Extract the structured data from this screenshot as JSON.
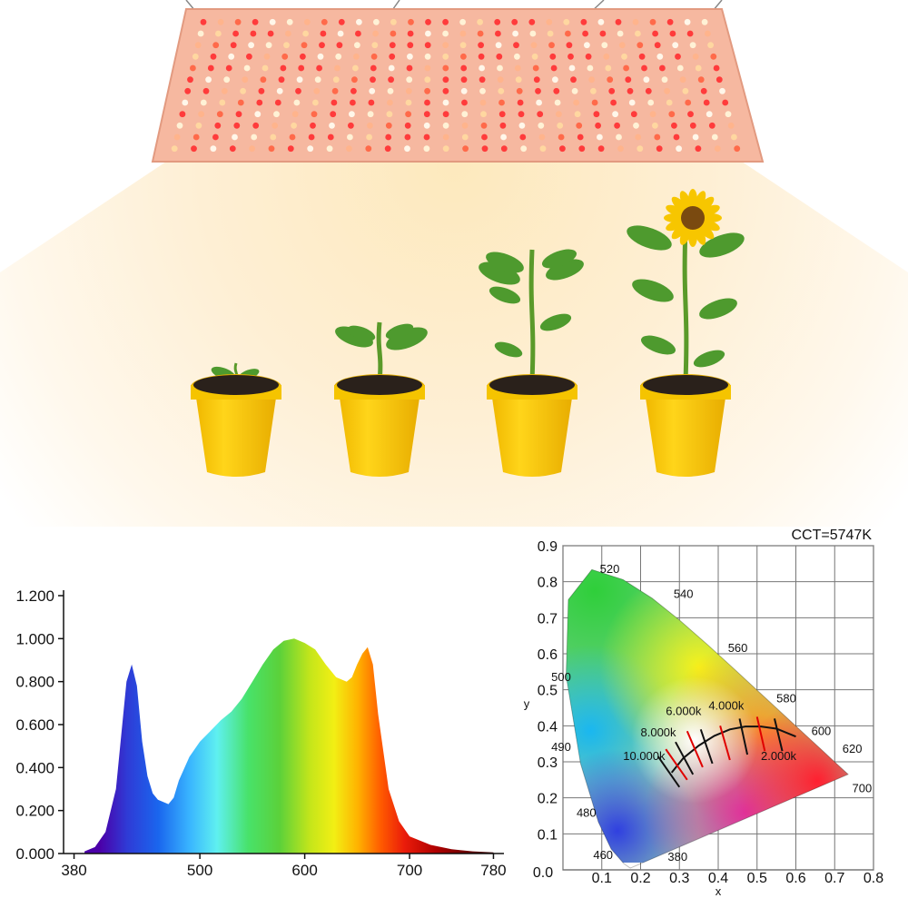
{
  "scene": {
    "panel_led_colors": [
      "#ff3b3b",
      "#ffd7a0",
      "#ff3b3b",
      "#fff2d6",
      "#ff6a4a",
      "#fff7ea",
      "#ffb48c",
      "#ff3b3b"
    ],
    "pot_color": "#f5c400",
    "pot_rim_color": "#e6b000",
    "soil_color": "#2a211b",
    "leaf_color": "#4e9a2e",
    "sunflower_petal_color": "#f7c600",
    "plants": [
      {
        "stage": "seedling",
        "icon": "seedling-icon"
      },
      {
        "stage": "young-plant",
        "icon": "young-plant-icon"
      },
      {
        "stage": "budding-plant",
        "icon": "budding-plant-icon"
      },
      {
        "stage": "flowering-sunflower",
        "icon": "sunflower-icon"
      }
    ]
  },
  "chart_data": [
    {
      "type": "area",
      "xlim": [
        370,
        790
      ],
      "ylim": [
        0,
        1.2
      ],
      "x_ticks": [
        380,
        500,
        600,
        700,
        780
      ],
      "x_tick_labels": [
        "380",
        "500",
        "600",
        "700",
        "780"
      ],
      "y_ticks": [
        0,
        0.2,
        0.4,
        0.6,
        0.8,
        1.0,
        1.2
      ],
      "y_tick_labels": [
        "0.000",
        "0.200",
        "0.400",
        "0.600",
        "0.800",
        "1.000",
        "1.200"
      ],
      "fill": "visible-spectrum-gradient",
      "series": [
        {
          "x": [
            390,
            400,
            410,
            420,
            425,
            430,
            435,
            440,
            445,
            450,
            455,
            460,
            470,
            475,
            480,
            490,
            500,
            510,
            520,
            530,
            540,
            550,
            560,
            570,
            580,
            590,
            600,
            610,
            620,
            630,
            640,
            645,
            650,
            655,
            660,
            665,
            670,
            680,
            690,
            700,
            720,
            740,
            760,
            780
          ],
          "y": [
            0.01,
            0.03,
            0.1,
            0.3,
            0.55,
            0.8,
            0.88,
            0.78,
            0.52,
            0.36,
            0.28,
            0.25,
            0.23,
            0.26,
            0.34,
            0.45,
            0.52,
            0.57,
            0.62,
            0.66,
            0.72,
            0.8,
            0.88,
            0.95,
            0.99,
            1.0,
            0.98,
            0.95,
            0.88,
            0.82,
            0.8,
            0.82,
            0.88,
            0.93,
            0.96,
            0.88,
            0.65,
            0.3,
            0.15,
            0.08,
            0.04,
            0.02,
            0.01,
            0.005
          ]
        }
      ]
    },
    {
      "type": "scatter",
      "title": "CCT=5747K",
      "xlabel": "x",
      "ylabel": "y",
      "xlim": [
        0,
        0.8
      ],
      "ylim": [
        0,
        0.9
      ],
      "x_ticks": [
        0.0,
        0.1,
        0.2,
        0.3,
        0.4,
        0.5,
        0.6,
        0.7,
        0.8
      ],
      "x_tick_labels": [
        "0.0",
        "0.1",
        "0.2",
        "0.3",
        "0.4",
        "0.5",
        "0.6",
        "0.7",
        "0.8"
      ],
      "y_ticks": [
        0.1,
        0.2,
        0.3,
        0.4,
        0.5,
        0.6,
        0.7,
        0.8,
        0.9
      ],
      "y_tick_labels": [
        "0.1",
        "0.2",
        "0.3",
        "0.4",
        "0.5",
        "0.6",
        "0.7",
        "0.8",
        "0.9"
      ],
      "locus": {
        "x": [
          0.1741,
          0.1703,
          0.1566,
          0.1241,
          0.0913,
          0.0454,
          0.0082,
          0.0139,
          0.0743,
          0.1547,
          0.2296,
          0.3016,
          0.3731,
          0.4441,
          0.5125,
          0.5752,
          0.627,
          0.6658,
          0.6915,
          0.7079,
          0.7347
        ],
        "y": [
          0.005,
          0.0071,
          0.0177,
          0.0578,
          0.1327,
          0.295,
          0.5384,
          0.7502,
          0.8338,
          0.8059,
          0.7543,
          0.6923,
          0.6245,
          0.5547,
          0.4866,
          0.4242,
          0.3725,
          0.334,
          0.3083,
          0.292,
          0.2653
        ]
      },
      "wavelength_labels": [
        {
          "label": "380",
          "x": 0.27,
          "y": 0.025
        },
        {
          "label": "460",
          "x": 0.078,
          "y": 0.03
        },
        {
          "label": "480",
          "x": 0.035,
          "y": 0.148
        },
        {
          "label": "490",
          "x": -0.03,
          "y": 0.33
        },
        {
          "label": "500",
          "x": -0.03,
          "y": 0.525
        },
        {
          "label": "520",
          "x": 0.095,
          "y": 0.825
        },
        {
          "label": "540",
          "x": 0.285,
          "y": 0.755
        },
        {
          "label": "560",
          "x": 0.425,
          "y": 0.605
        },
        {
          "label": "580",
          "x": 0.55,
          "y": 0.465
        },
        {
          "label": "600",
          "x": 0.64,
          "y": 0.375
        },
        {
          "label": "620",
          "x": 0.72,
          "y": 0.325
        },
        {
          "label": "700",
          "x": 0.745,
          "y": 0.215
        }
      ],
      "planckian_locus": {
        "x": [
          0.28,
          0.31,
          0.35,
          0.39,
          0.43,
          0.47,
          0.51,
          0.55,
          0.6
        ],
        "y": [
          0.27,
          0.31,
          0.345,
          0.372,
          0.39,
          0.398,
          0.398,
          0.392,
          0.37
        ]
      },
      "cct_labels": [
        {
          "label": "10.000k",
          "x": 0.155,
          "y": 0.305
        },
        {
          "label": "8.000k",
          "x": 0.2,
          "y": 0.37
        },
        {
          "label": "6.000k",
          "x": 0.265,
          "y": 0.43
        },
        {
          "label": "4.000k",
          "x": 0.375,
          "y": 0.445
        },
        {
          "label": "2.000k",
          "x": 0.51,
          "y": 0.305
        }
      ],
      "isotherm_colors": [
        "#111111",
        "#e00000"
      ],
      "isotherms": [
        {
          "x": [
            0.245,
            0.3
          ],
          "y": [
            0.315,
            0.23
          ]
        },
        {
          "x": [
            0.265,
            0.32
          ],
          "y": [
            0.335,
            0.25
          ]
        },
        {
          "x": [
            0.29,
            0.335
          ],
          "y": [
            0.355,
            0.265
          ]
        },
        {
          "x": [
            0.32,
            0.36
          ],
          "y": [
            0.385,
            0.285
          ]
        },
        {
          "x": [
            0.355,
            0.385
          ],
          "y": [
            0.39,
            0.295
          ]
        },
        {
          "x": [
            0.405,
            0.43
          ],
          "y": [
            0.4,
            0.305
          ]
        },
        {
          "x": [
            0.455,
            0.475
          ],
          "y": [
            0.42,
            0.32
          ]
        },
        {
          "x": [
            0.5,
            0.52
          ],
          "y": [
            0.425,
            0.33
          ]
        },
        {
          "x": [
            0.545,
            0.565
          ],
          "y": [
            0.42,
            0.33
          ]
        }
      ]
    }
  ]
}
